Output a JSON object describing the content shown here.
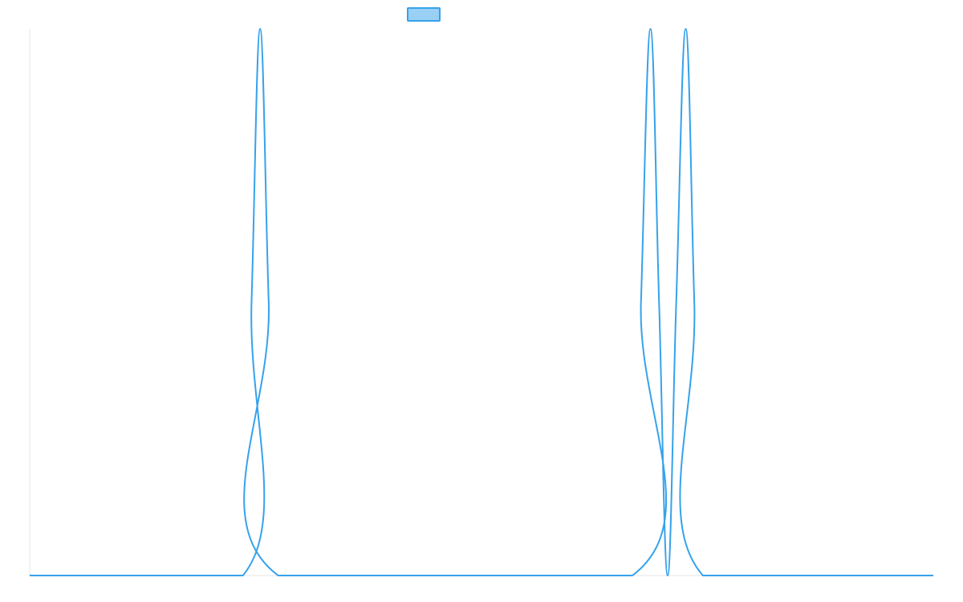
{
  "chart_data": {
    "type": "line",
    "title": "",
    "xlabel": "",
    "ylabel": "",
    "x_range": [
      0,
      1
    ],
    "ylim": [
      0,
      1
    ],
    "grid": false,
    "legend_position": "top",
    "series": [
      {
        "name": "",
        "color": "#36a2eb",
        "fill_color": "#9ad0f5",
        "points": [
          [
            0.0,
            0.0
          ],
          [
            0.236,
            0.0
          ],
          [
            0.2455,
            0.5
          ],
          [
            0.255,
            1.0
          ],
          [
            0.2645,
            0.5
          ],
          [
            0.275,
            0.0
          ],
          [
            0.667,
            0.0
          ],
          [
            0.6765,
            0.5
          ],
          [
            0.687,
            1.0
          ],
          [
            0.6965,
            0.5
          ],
          [
            0.706,
            0.0
          ],
          [
            0.7155,
            0.5
          ],
          [
            0.726,
            1.0
          ],
          [
            0.7355,
            0.5
          ],
          [
            0.745,
            0.0
          ],
          [
            1.0,
            0.0
          ]
        ]
      }
    ]
  },
  "legend": {
    "swatch_color": "#9ad0f5",
    "border_color": "#36a2eb",
    "label": ""
  },
  "axis": {
    "axis_line_color": "#e5e5e5"
  }
}
